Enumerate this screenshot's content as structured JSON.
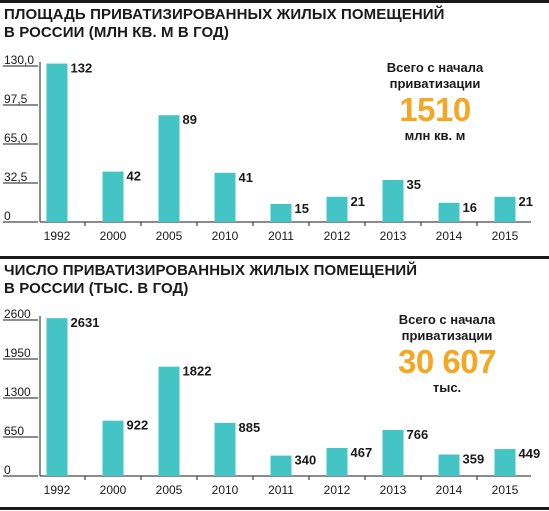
{
  "charts": [
    {
      "title_line1": "ПЛОЩАДЬ ПРИВАТИЗИРОВАННЫХ ЖИЛЫХ ПОМЕЩЕНИЙ",
      "title_line2": "В РОССИИ (МЛН КВ. М В ГОД)",
      "total_label_line1": "Всего с начала",
      "total_label_line2": "приватизации",
      "total_value": "1510",
      "total_unit": "млн кв. м"
    },
    {
      "title_line1": "ЧИСЛО ПРИВАТИЗИРОВАННЫХ ЖИЛЫХ ПОМЕЩЕНИЙ",
      "title_line2": "В РОССИИ (ТЫС. В ГОД)",
      "total_label_line1": "Всего с начала",
      "total_label_line2": "приватизации",
      "total_value": "30 607",
      "total_unit": "тыс."
    }
  ],
  "colors": {
    "bar": "#45c4c6",
    "accent": "#f5a623",
    "text": "#1a1a1a",
    "axis": "#1a1a1a"
  },
  "chart_data": [
    {
      "type": "bar",
      "title": "ПЛОЩАДЬ ПРИВАТИЗИРОВАННЫХ ЖИЛЫХ ПОМЕЩЕНИЙ В РОССИИ (МЛН КВ. М В ГОД)",
      "categories": [
        "1992",
        "2000",
        "2005",
        "2010",
        "2011",
        "2012",
        "2013",
        "2014",
        "2015"
      ],
      "values": [
        132,
        42,
        89,
        41,
        15,
        21,
        35,
        16,
        21
      ],
      "value_labels": [
        "132",
        "42",
        "89",
        "41",
        "15",
        "21",
        "35",
        "16",
        "21"
      ],
      "y_ticks": [
        0,
        32.5,
        65,
        97.5,
        130
      ],
      "y_tick_labels": [
        "0",
        "32,5",
        "65,0",
        "97,5",
        "130,0"
      ],
      "ylim": [
        0,
        130
      ],
      "xlabel": "",
      "ylabel": "",
      "grid": false,
      "legend": "none"
    },
    {
      "type": "bar",
      "title": "ЧИСЛО ПРИВАТИЗИРОВАННЫХ ЖИЛЫХ ПОМЕЩЕНИЙ В РОССИИ (ТЫС. В ГОД)",
      "categories": [
        "1992",
        "2000",
        "2005",
        "2010",
        "2011",
        "2012",
        "2013",
        "2014",
        "2015"
      ],
      "values": [
        2631,
        922,
        1822,
        885,
        340,
        467,
        766,
        359,
        449
      ],
      "value_labels": [
        "2631",
        "922",
        "1822",
        "885",
        "340",
        "467",
        "766",
        "359",
        "449"
      ],
      "y_ticks": [
        0,
        650,
        1300,
        1950,
        2600
      ],
      "y_tick_labels": [
        "0",
        "650",
        "1300",
        "1950",
        "2600"
      ],
      "ylim": [
        0,
        2600
      ],
      "xlabel": "",
      "ylabel": "",
      "grid": false,
      "legend": "none"
    }
  ]
}
